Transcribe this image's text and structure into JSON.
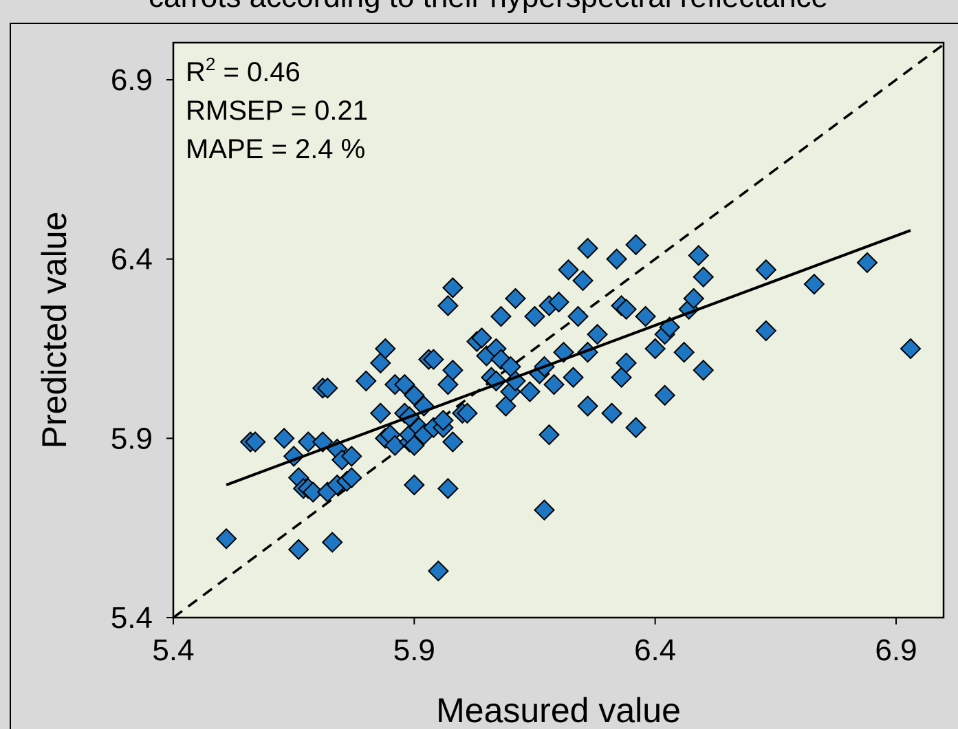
{
  "chart_data": {
    "type": "scatter",
    "title": "carrots according to their hyperspectral reflectance",
    "xlabel": "Measured value",
    "ylabel": "Predicted value",
    "xlim": [
      5.4,
      7.0
    ],
    "ylim": [
      5.4,
      7.05
    ],
    "x_ticks": [
      "5.4",
      "5.9",
      "6.4",
      "6.9"
    ],
    "y_ticks": [
      "5.4",
      "5.9",
      "6.4",
      "6.9"
    ],
    "stats": {
      "r2_label": "R",
      "r2_sup": "2",
      "r2_value": " = 0.46",
      "rmsep": "RMSEP = 0.21",
      "mape": "MAPE = 2.4 %"
    },
    "reference_line": {
      "style": "dashed",
      "x": [
        5.4,
        7.0
      ],
      "y": [
        5.4,
        7.0
      ]
    },
    "fit_line": {
      "style": "solid",
      "x": [
        5.51,
        6.93
      ],
      "y": [
        5.77,
        6.48
      ]
    },
    "marker": {
      "shape": "diamond",
      "fill": "#1f77c4",
      "stroke": "#000000"
    },
    "colors": {
      "plot_background": "#ecf0e0",
      "page_background": "#d9d9d9"
    },
    "points": [
      [
        5.51,
        5.62
      ],
      [
        5.56,
        5.89
      ],
      [
        5.57,
        5.89
      ],
      [
        5.63,
        5.9
      ],
      [
        5.65,
        5.85
      ],
      [
        5.66,
        5.79
      ],
      [
        5.66,
        5.59
      ],
      [
        5.67,
        5.76
      ],
      [
        5.68,
        5.76
      ],
      [
        5.68,
        5.89
      ],
      [
        5.69,
        5.75
      ],
      [
        5.71,
        5.89
      ],
      [
        5.71,
        6.04
      ],
      [
        5.72,
        6.04
      ],
      [
        5.72,
        5.75
      ],
      [
        5.73,
        5.61
      ],
      [
        5.74,
        5.87
      ],
      [
        5.74,
        5.77
      ],
      [
        5.75,
        5.84
      ],
      [
        5.76,
        5.78
      ],
      [
        5.77,
        5.79
      ],
      [
        5.77,
        5.85
      ],
      [
        5.8,
        6.06
      ],
      [
        5.83,
        5.97
      ],
      [
        5.83,
        6.11
      ],
      [
        5.84,
        6.15
      ],
      [
        5.84,
        5.9
      ],
      [
        5.85,
        5.91
      ],
      [
        5.86,
        6.05
      ],
      [
        5.86,
        5.88
      ],
      [
        5.88,
        6.05
      ],
      [
        5.88,
        5.97
      ],
      [
        5.89,
        5.89
      ],
      [
        5.89,
        5.91
      ],
      [
        5.89,
        5.96
      ],
      [
        5.9,
        5.77
      ],
      [
        5.9,
        6.02
      ],
      [
        5.9,
        5.88
      ],
      [
        5.91,
        5.93
      ],
      [
        5.92,
        5.99
      ],
      [
        5.92,
        5.91
      ],
      [
        5.93,
        6.12
      ],
      [
        5.94,
        6.12
      ],
      [
        5.94,
        5.93
      ],
      [
        5.95,
        5.53
      ],
      [
        5.96,
        5.93
      ],
      [
        5.96,
        5.95
      ],
      [
        5.97,
        5.76
      ],
      [
        5.97,
        6.27
      ],
      [
        5.97,
        6.05
      ],
      [
        5.98,
        6.09
      ],
      [
        5.98,
        5.89
      ],
      [
        5.98,
        6.32
      ],
      [
        6.0,
        5.97
      ],
      [
        6.01,
        5.97
      ],
      [
        6.03,
        6.17
      ],
      [
        6.04,
        6.18
      ],
      [
        6.05,
        6.13
      ],
      [
        6.06,
        6.07
      ],
      [
        6.07,
        6.06
      ],
      [
        6.07,
        6.15
      ],
      [
        6.08,
        6.12
      ],
      [
        6.08,
        6.24
      ],
      [
        6.09,
        5.99
      ],
      [
        6.1,
        6.03
      ],
      [
        6.1,
        6.1
      ],
      [
        6.11,
        6.06
      ],
      [
        6.11,
        6.29
      ],
      [
        6.14,
        6.03
      ],
      [
        6.15,
        6.24
      ],
      [
        6.16,
        6.08
      ],
      [
        6.17,
        6.1
      ],
      [
        6.17,
        5.7
      ],
      [
        6.18,
        6.27
      ],
      [
        6.18,
        5.91
      ],
      [
        6.19,
        6.05
      ],
      [
        6.2,
        6.28
      ],
      [
        6.21,
        6.14
      ],
      [
        6.22,
        6.37
      ],
      [
        6.23,
        6.07
      ],
      [
        6.24,
        6.24
      ],
      [
        6.25,
        6.34
      ],
      [
        6.26,
        5.99
      ],
      [
        6.26,
        6.14
      ],
      [
        6.26,
        6.43
      ],
      [
        6.28,
        6.19
      ],
      [
        6.31,
        5.97
      ],
      [
        6.32,
        6.4
      ],
      [
        6.33,
        6.07
      ],
      [
        6.33,
        6.27
      ],
      [
        6.34,
        6.11
      ],
      [
        6.34,
        6.26
      ],
      [
        6.36,
        5.93
      ],
      [
        6.36,
        6.44
      ],
      [
        6.38,
        6.24
      ],
      [
        6.4,
        6.15
      ],
      [
        6.42,
        6.02
      ],
      [
        6.42,
        6.19
      ],
      [
        6.43,
        6.21
      ],
      [
        6.46,
        6.14
      ],
      [
        6.47,
        6.26
      ],
      [
        6.48,
        6.29
      ],
      [
        6.49,
        6.41
      ],
      [
        6.5,
        6.35
      ],
      [
        6.5,
        6.09
      ],
      [
        6.63,
        6.2
      ],
      [
        6.63,
        6.37
      ],
      [
        6.73,
        6.33
      ],
      [
        6.84,
        6.39
      ],
      [
        6.93,
        6.15
      ]
    ]
  }
}
